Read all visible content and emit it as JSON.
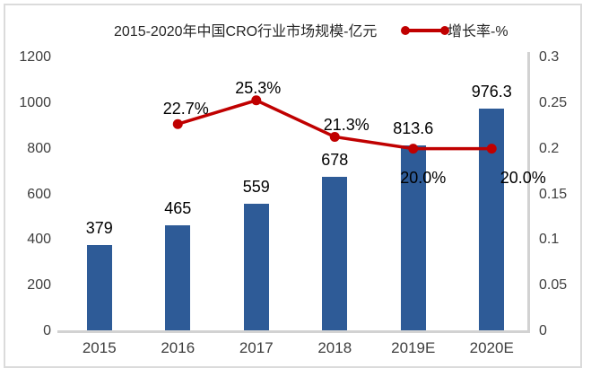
{
  "chart_data": {
    "type": "bar+line",
    "title": "",
    "categories": [
      "2015",
      "2016",
      "2017",
      "2018",
      "2019E",
      "2020E"
    ],
    "series": [
      {
        "name": "2015-2020年中国CRO行业市场规模-亿元",
        "type": "bar",
        "axis": "left",
        "color": "#2E5B97",
        "values": [
          379,
          465,
          559,
          678,
          813.6,
          976.3
        ],
        "labels": [
          "379",
          "465",
          "559",
          "678",
          "813.6",
          "976.3"
        ]
      },
      {
        "name": "增长率-%",
        "type": "line",
        "axis": "right",
        "color": "#C00000",
        "values": [
          null,
          0.227,
          0.253,
          0.213,
          0.2,
          0.2
        ],
        "labels": [
          null,
          "22.7%",
          "25.3%",
          "21.3%",
          "20.0%",
          "20.0%"
        ],
        "label_offsets": [
          null,
          {
            "dx": 9,
            "dy": -17
          },
          {
            "dx": 2,
            "dy": -14
          },
          {
            "dx": 13,
            "dy": -13
          },
          {
            "dx": 11,
            "dy": 32
          },
          {
            "dx": 35,
            "dy": 32
          }
        ]
      }
    ],
    "left_axis": {
      "min": 0,
      "max": 1200,
      "tick_values": [
        0,
        200,
        400,
        600,
        800,
        1000,
        1200
      ],
      "tick_labels": [
        "0",
        "200",
        "400",
        "600",
        "800",
        "1000",
        "1200"
      ]
    },
    "right_axis": {
      "min": 0,
      "max": 0.3,
      "tick_values": [
        0,
        0.05,
        0.1,
        0.15,
        0.2,
        0.25,
        0.3
      ],
      "tick_labels": [
        "0",
        "0.05",
        "0.1",
        "0.15",
        "0.2",
        "0.25",
        "0.3"
      ]
    },
    "grid": false,
    "legend_position": "top"
  }
}
